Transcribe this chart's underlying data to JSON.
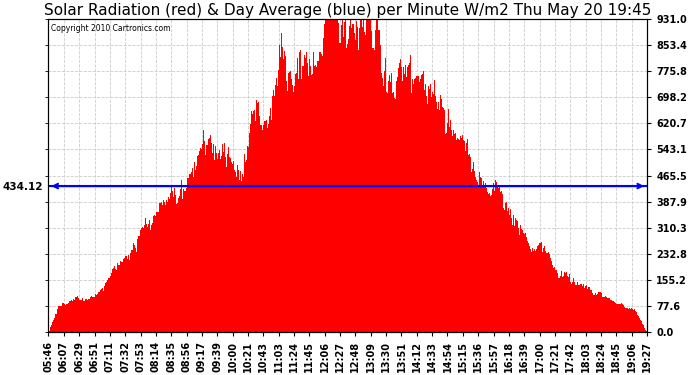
{
  "title": "Solar Radiation (red) & Day Average (blue) per Minute W/m2 Thu May 20 19:45",
  "copyright": "Copyright 2010 Cartronics.com",
  "y_max": 931.0,
  "y_min": 0.0,
  "day_average": 434.12,
  "yticks": [
    931.0,
    853.4,
    775.8,
    698.2,
    620.7,
    543.1,
    465.5,
    387.9,
    310.3,
    232.8,
    155.2,
    77.6,
    0.0
  ],
  "xtick_labels": [
    "05:46",
    "06:07",
    "06:29",
    "06:51",
    "07:11",
    "07:32",
    "07:53",
    "08:14",
    "08:35",
    "08:56",
    "09:17",
    "09:39",
    "10:00",
    "10:21",
    "10:43",
    "11:03",
    "11:24",
    "11:45",
    "12:06",
    "12:27",
    "12:48",
    "13:09",
    "13:30",
    "13:51",
    "14:12",
    "14:33",
    "14:54",
    "15:15",
    "15:36",
    "15:57",
    "16:18",
    "16:39",
    "17:00",
    "17:21",
    "17:42",
    "18:03",
    "18:24",
    "18:45",
    "19:06",
    "19:27"
  ],
  "bar_color": "#FF0000",
  "avg_line_color": "#0000FF",
  "bg_color": "#FFFFFF",
  "grid_color": "#CCCCCC",
  "title_fontsize": 11,
  "tick_fontsize": 7,
  "avg_label_fontsize": 7.5
}
